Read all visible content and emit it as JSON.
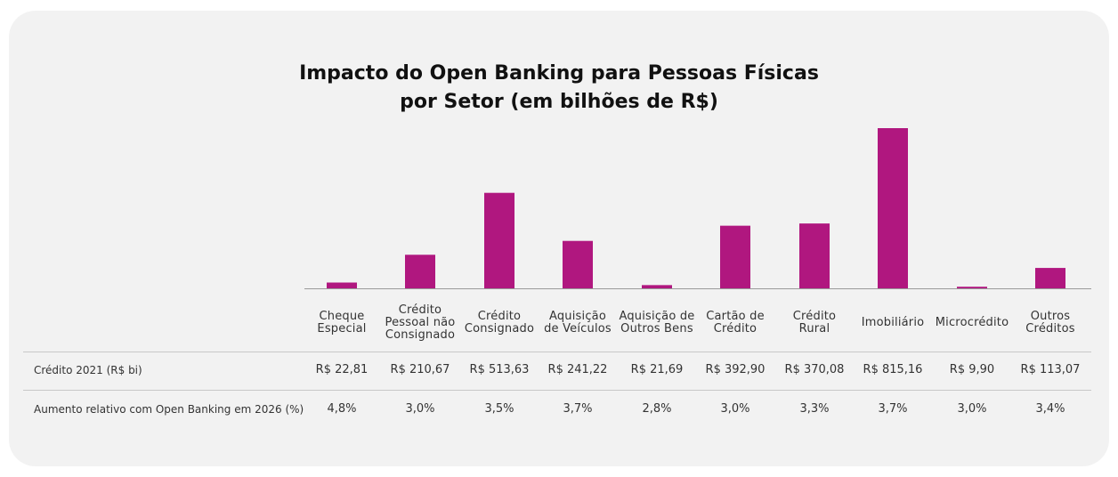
{
  "chart_data": {
    "type": "bar",
    "title_line1": "Impacto do Open Banking para Pessoas Físicas",
    "title_line2": "por Setor (em bilhões de R$)",
    "bar_color": "#b0177f",
    "categories": [
      "Cheque\nEspecial",
      "Crédito\nPessoal não\nConsignado",
      "Crédito\nConsignado",
      "Aquisição\nde Veículos",
      "Aquisição de\nOutros Bens",
      "Cartão de\nCrédito",
      "Crédito\nRural",
      "Imobiliário",
      "Microcrédito",
      "Outros\nCréditos"
    ],
    "values": [
      1.09,
      6.32,
      17.98,
      8.93,
      0.61,
      11.79,
      12.21,
      30.16,
      0.3,
      3.84
    ],
    "table": {
      "row1_label": "Crédito 2021 (R$ bi)",
      "row1_values": [
        "R$ 22,81",
        "R$ 210,67",
        "R$ 513,63",
        "R$ 241,22",
        "R$ 21,69",
        "R$ 392,90",
        "R$ 370,08",
        "R$ 815,16",
        "R$ 9,90",
        "R$ 113,07"
      ],
      "row2_label": "Aumento relativo com Open Banking em 2026 (%)",
      "row2_values": [
        "4,8%",
        "3,0%",
        "3,5%",
        "3,7%",
        "2,8%",
        "3,0%",
        "3,3%",
        "3,7%",
        "3,0%",
        "3,4%"
      ]
    }
  }
}
